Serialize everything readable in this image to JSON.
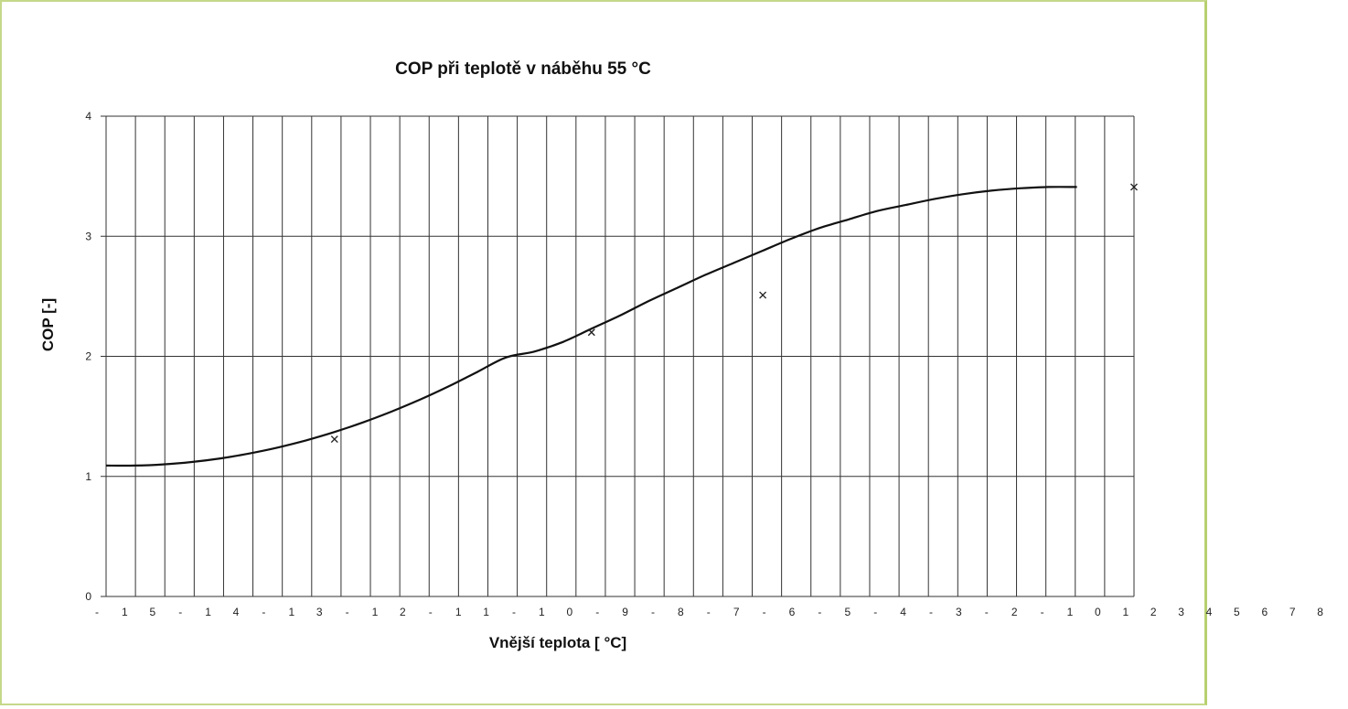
{
  "chart_data": {
    "type": "line",
    "title": "COP při teplotě v náběhu 55 °C",
    "xlabel": "Vnější teplota [ °C]",
    "ylabel": "COP [-]",
    "ylim": [
      0,
      4
    ],
    "yticks": [
      "0",
      "1",
      "2",
      "3",
      "4"
    ],
    "xtick_labels": [
      "-",
      "1",
      "5",
      "-",
      "1",
      "4",
      "-",
      "1",
      "3",
      "-",
      "1",
      "2",
      "-",
      "1",
      "1",
      "-",
      "1",
      "0",
      "-",
      "9",
      "-",
      "8",
      "-",
      "7",
      "-",
      "6",
      "-",
      "5",
      "-",
      "4",
      "-",
      "3",
      "-",
      "2",
      "-",
      "1",
      "0",
      "1",
      "2",
      "3",
      "4",
      "5",
      "6",
      "7",
      "8"
    ],
    "grid": true,
    "series": [
      {
        "kind": "curve",
        "x": [
          -15,
          -14,
          -13,
          -12,
          -11,
          -10,
          -9,
          -8,
          -7,
          -6,
          -5,
          -4,
          -3,
          -2,
          -1,
          0,
          1,
          2,
          3,
          4,
          5,
          6,
          7,
          8,
          9,
          10,
          11,
          12,
          13,
          14,
          15,
          16,
          17,
          18,
          19
        ],
        "y": [
          1.09,
          1.09,
          1.1,
          1.12,
          1.15,
          1.19,
          1.24,
          1.3,
          1.37,
          1.45,
          1.54,
          1.64,
          1.75,
          1.87,
          1.99,
          2.04,
          2.12,
          2.23,
          2.34,
          2.46,
          2.57,
          2.68,
          2.78,
          2.88,
          2.98,
          3.07,
          3.14,
          3.21,
          3.26,
          3.31,
          3.35,
          3.38,
          3.4,
          3.41,
          3.41
        ]
      },
      {
        "kind": "markers",
        "x": [
          -7,
          2,
          8,
          21
        ],
        "y": [
          1.31,
          2.2,
          2.51,
          3.41
        ]
      }
    ]
  }
}
